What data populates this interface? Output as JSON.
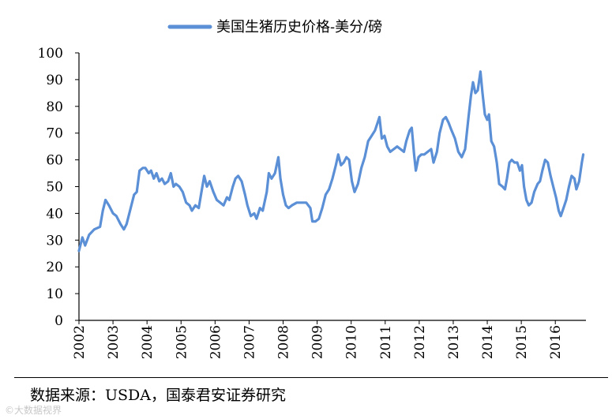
{
  "chart_data": {
    "type": "line",
    "title": "",
    "legend": {
      "label": "美国生猪历史价格-美分/磅",
      "placement": "top-center"
    },
    "series": [
      {
        "name": "美国生猪历史价格-美分/磅",
        "color": "#5b8fd6",
        "points": [
          [
            2002.0,
            26
          ],
          [
            2002.1,
            31
          ],
          [
            2002.18,
            28
          ],
          [
            2002.3,
            32
          ],
          [
            2002.45,
            34
          ],
          [
            2002.62,
            35
          ],
          [
            2002.7,
            41
          ],
          [
            2002.78,
            45
          ],
          [
            2002.88,
            43
          ],
          [
            2003.0,
            40
          ],
          [
            2003.1,
            39
          ],
          [
            2003.22,
            36
          ],
          [
            2003.32,
            34
          ],
          [
            2003.4,
            36
          ],
          [
            2003.52,
            42
          ],
          [
            2003.62,
            47
          ],
          [
            2003.7,
            48
          ],
          [
            2003.78,
            56
          ],
          [
            2003.88,
            57
          ],
          [
            2003.95,
            57
          ],
          [
            2004.05,
            55
          ],
          [
            2004.12,
            56
          ],
          [
            2004.2,
            53
          ],
          [
            2004.28,
            55
          ],
          [
            2004.36,
            52
          ],
          [
            2004.44,
            53
          ],
          [
            2004.52,
            51
          ],
          [
            2004.62,
            52
          ],
          [
            2004.7,
            55
          ],
          [
            2004.78,
            50
          ],
          [
            2004.85,
            51
          ],
          [
            2004.95,
            50
          ],
          [
            2005.05,
            48
          ],
          [
            2005.15,
            44
          ],
          [
            2005.25,
            43
          ],
          [
            2005.32,
            41
          ],
          [
            2005.42,
            43
          ],
          [
            2005.52,
            42
          ],
          [
            2005.6,
            48
          ],
          [
            2005.68,
            54
          ],
          [
            2005.76,
            50
          ],
          [
            2005.84,
            52
          ],
          [
            2005.95,
            48
          ],
          [
            2006.05,
            45
          ],
          [
            2006.15,
            44
          ],
          [
            2006.25,
            43
          ],
          [
            2006.35,
            46
          ],
          [
            2006.42,
            45
          ],
          [
            2006.52,
            50
          ],
          [
            2006.6,
            53
          ],
          [
            2006.68,
            54
          ],
          [
            2006.78,
            52
          ],
          [
            2006.88,
            47
          ],
          [
            2006.95,
            43
          ],
          [
            2007.05,
            39
          ],
          [
            2007.15,
            40
          ],
          [
            2007.22,
            38
          ],
          [
            2007.32,
            42
          ],
          [
            2007.4,
            41
          ],
          [
            2007.52,
            48
          ],
          [
            2007.58,
            55
          ],
          [
            2007.66,
            53
          ],
          [
            2007.76,
            55
          ],
          [
            2007.86,
            61
          ],
          [
            2007.92,
            53
          ],
          [
            2008.0,
            47
          ],
          [
            2008.08,
            43
          ],
          [
            2008.16,
            42
          ],
          [
            2008.26,
            43
          ],
          [
            2008.4,
            44
          ],
          [
            2008.55,
            44
          ],
          [
            2008.68,
            44
          ],
          [
            2008.8,
            42
          ],
          [
            2008.86,
            37
          ],
          [
            2008.95,
            37
          ],
          [
            2009.05,
            38
          ],
          [
            2009.15,
            42
          ],
          [
            2009.25,
            47
          ],
          [
            2009.35,
            49
          ],
          [
            2009.45,
            53
          ],
          [
            2009.55,
            58
          ],
          [
            2009.62,
            62
          ],
          [
            2009.7,
            58
          ],
          [
            2009.78,
            59
          ],
          [
            2009.86,
            61
          ],
          [
            2009.94,
            60
          ],
          [
            2010.02,
            52
          ],
          [
            2010.1,
            48
          ],
          [
            2010.2,
            51
          ],
          [
            2010.3,
            57
          ],
          [
            2010.4,
            61
          ],
          [
            2010.5,
            67
          ],
          [
            2010.6,
            69
          ],
          [
            2010.7,
            71
          ],
          [
            2010.78,
            74
          ],
          [
            2010.83,
            76
          ],
          [
            2010.9,
            68
          ],
          [
            2010.98,
            69
          ],
          [
            2011.06,
            65
          ],
          [
            2011.15,
            63
          ],
          [
            2011.25,
            64
          ],
          [
            2011.35,
            65
          ],
          [
            2011.45,
            64
          ],
          [
            2011.55,
            63
          ],
          [
            2011.62,
            67
          ],
          [
            2011.72,
            71
          ],
          [
            2011.78,
            72
          ],
          [
            2011.85,
            62
          ],
          [
            2011.9,
            56
          ],
          [
            2011.98,
            61
          ],
          [
            2012.06,
            62
          ],
          [
            2012.15,
            62
          ],
          [
            2012.25,
            63
          ],
          [
            2012.35,
            64
          ],
          [
            2012.42,
            59
          ],
          [
            2012.52,
            63
          ],
          [
            2012.6,
            70
          ],
          [
            2012.7,
            75
          ],
          [
            2012.78,
            76
          ],
          [
            2012.86,
            74
          ],
          [
            2012.95,
            71
          ],
          [
            2013.05,
            68
          ],
          [
            2013.15,
            63
          ],
          [
            2013.25,
            61
          ],
          [
            2013.35,
            64
          ],
          [
            2013.45,
            76
          ],
          [
            2013.52,
            84
          ],
          [
            2013.58,
            89
          ],
          [
            2013.65,
            85
          ],
          [
            2013.72,
            86
          ],
          [
            2013.8,
            93
          ],
          [
            2013.86,
            85
          ],
          [
            2013.93,
            77
          ],
          [
            2014.0,
            75
          ],
          [
            2014.05,
            77
          ],
          [
            2014.12,
            67
          ],
          [
            2014.2,
            65
          ],
          [
            2014.28,
            59
          ],
          [
            2014.35,
            51
          ],
          [
            2014.45,
            50
          ],
          [
            2014.52,
            49
          ],
          [
            2014.58,
            53
          ],
          [
            2014.65,
            59
          ],
          [
            2014.72,
            60
          ],
          [
            2014.8,
            59
          ],
          [
            2014.88,
            59
          ],
          [
            2014.96,
            56
          ],
          [
            2015.02,
            58
          ],
          [
            2015.08,
            50
          ],
          [
            2015.15,
            45
          ],
          [
            2015.22,
            43
          ],
          [
            2015.3,
            44
          ],
          [
            2015.38,
            48
          ],
          [
            2015.48,
            51
          ],
          [
            2015.55,
            52
          ],
          [
            2015.62,
            56
          ],
          [
            2015.7,
            60
          ],
          [
            2015.78,
            59
          ],
          [
            2015.86,
            54
          ],
          [
            2015.94,
            50
          ],
          [
            2016.02,
            46
          ],
          [
            2016.1,
            41
          ],
          [
            2016.16,
            39
          ],
          [
            2016.24,
            42
          ],
          [
            2016.32,
            45
          ],
          [
            2016.4,
            50
          ],
          [
            2016.48,
            54
          ],
          [
            2016.56,
            53
          ],
          [
            2016.62,
            49
          ],
          [
            2016.7,
            52
          ],
          [
            2016.78,
            59
          ],
          [
            2016.82,
            62
          ]
        ]
      }
    ],
    "xlabel": "",
    "ylabel": "",
    "xlim": [
      2002,
      2016.9
    ],
    "ylim": [
      0,
      100
    ],
    "yticks": [
      0,
      10,
      20,
      30,
      40,
      50,
      60,
      70,
      80,
      90,
      100
    ],
    "xticks": [
      2002,
      2003,
      2004,
      2005,
      2006,
      2007,
      2008,
      2009,
      2010,
      2011,
      2012,
      2013,
      2014,
      2015,
      2016
    ],
    "grid": false
  },
  "footer": {
    "source": "数据来源：USDA，国泰君安证券研究",
    "watermark": "©大数据视界"
  }
}
